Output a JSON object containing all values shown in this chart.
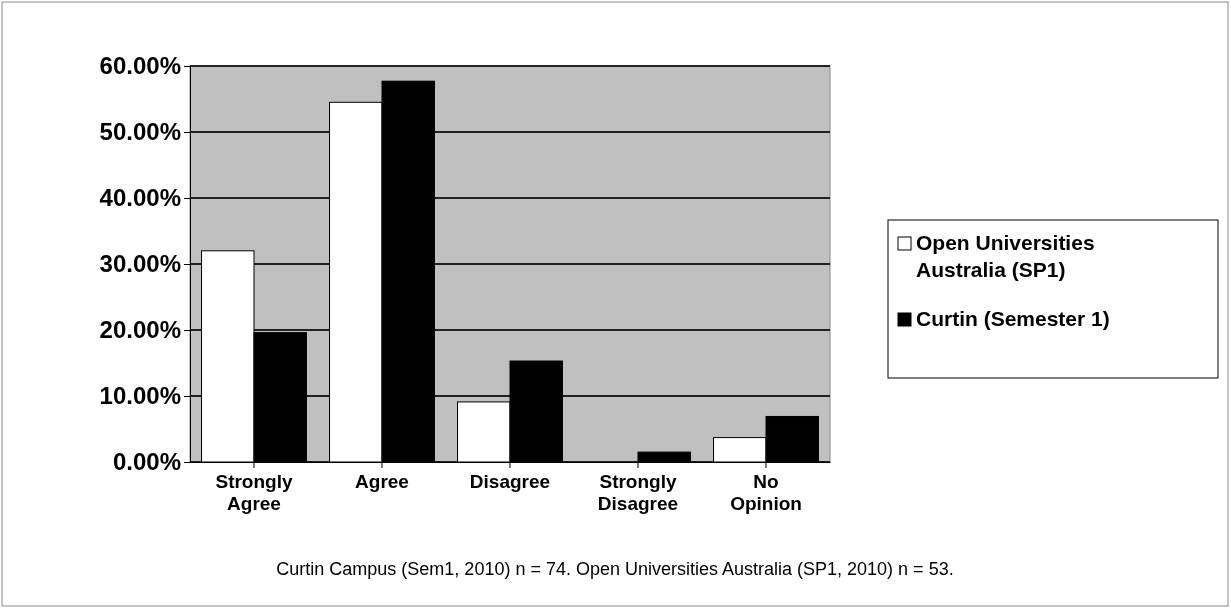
{
  "chart_data": {
    "type": "bar",
    "categories": [
      "Strongly Agree",
      "Agree",
      "Disagree",
      "Strongly Disagree",
      "No Opinion"
    ],
    "series": [
      {
        "name": "Open Universities Australia (SP1)",
        "color": "#ffffff",
        "values": [
          32.0,
          54.5,
          9.1,
          0,
          3.7
        ]
      },
      {
        "name": "Curtin (Semester 1)",
        "color": "#000000",
        "values": [
          19.6,
          57.7,
          15.3,
          1.5,
          6.9
        ]
      }
    ],
    "ylim": [
      0,
      60
    ],
    "yticks": [
      {
        "value": 0,
        "label": "0.00%"
      },
      {
        "value": 10,
        "label": "10.00%"
      },
      {
        "value": 20,
        "label": "20.00%"
      },
      {
        "value": 30,
        "label": "30.00%"
      },
      {
        "value": 40,
        "label": "40.00%"
      },
      {
        "value": 50,
        "label": "50.00%"
      },
      {
        "value": 60,
        "label": "60.00%"
      }
    ],
    "grid": "y",
    "legend": "right",
    "annotations": [
      "Curtin Campus (Sem1, 2010) n = 74. Open Universities Australia (SP1, 2010) n = 53."
    ]
  }
}
